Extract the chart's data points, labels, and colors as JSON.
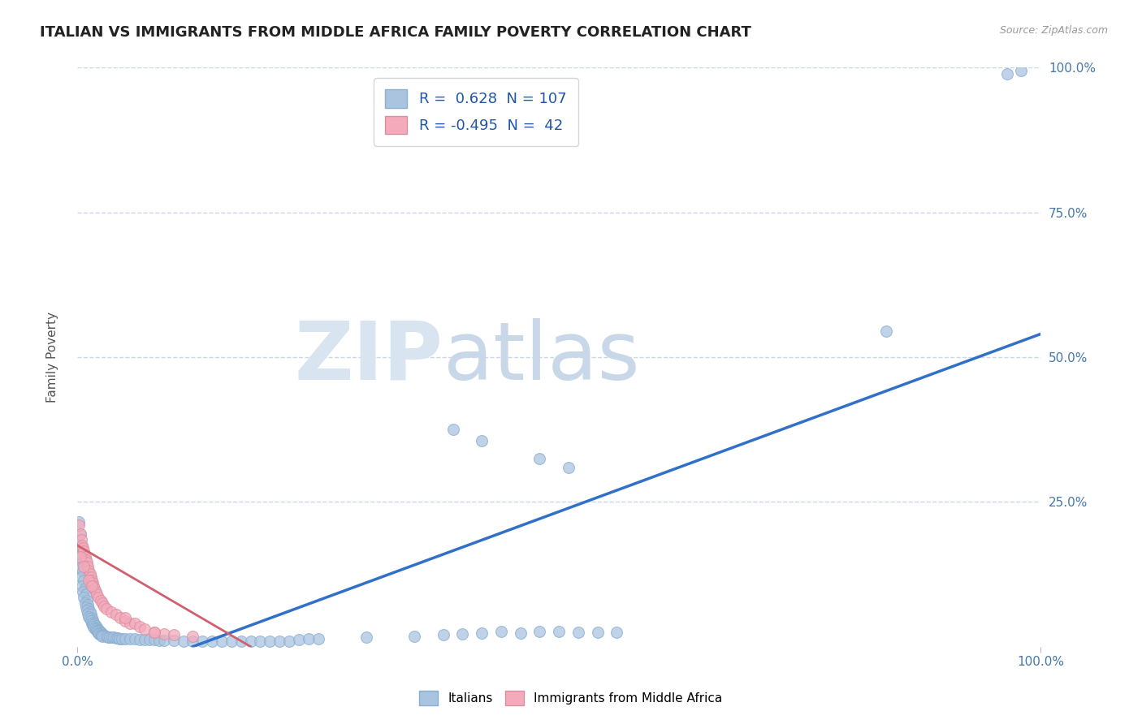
{
  "title": "ITALIAN VS IMMIGRANTS FROM MIDDLE AFRICA FAMILY POVERTY CORRELATION CHART",
  "source": "Source: ZipAtlas.com",
  "ylabel": "Family Poverty",
  "x_tick_labels": [
    "0.0%",
    "100.0%"
  ],
  "y_tick_labels": [
    "25.0%",
    "50.0%",
    "75.0%",
    "100.0%"
  ],
  "legend_labels": [
    "Italians",
    "Immigrants from Middle Africa"
  ],
  "blue_color": "#aac4e0",
  "pink_color": "#f4aabb",
  "blue_line_color": "#3070c8",
  "pink_line_color": "#d06070",
  "watermark_zip": "ZIP",
  "watermark_atlas": "atlas",
  "blue_scatter": [
    [
      0.002,
      0.215
    ],
    [
      0.003,
      0.195
    ],
    [
      0.001,
      0.175
    ],
    [
      0.004,
      0.16
    ],
    [
      0.002,
      0.155
    ],
    [
      0.005,
      0.145
    ],
    [
      0.003,
      0.135
    ],
    [
      0.006,
      0.13
    ],
    [
      0.004,
      0.12
    ],
    [
      0.007,
      0.115
    ],
    [
      0.005,
      0.105
    ],
    [
      0.008,
      0.1
    ],
    [
      0.006,
      0.095
    ],
    [
      0.009,
      0.09
    ],
    [
      0.007,
      0.085
    ],
    [
      0.01,
      0.08
    ],
    [
      0.008,
      0.075
    ],
    [
      0.011,
      0.072
    ],
    [
      0.009,
      0.068
    ],
    [
      0.012,
      0.065
    ],
    [
      0.01,
      0.062
    ],
    [
      0.013,
      0.06
    ],
    [
      0.011,
      0.057
    ],
    [
      0.014,
      0.055
    ],
    [
      0.012,
      0.052
    ],
    [
      0.015,
      0.05
    ],
    [
      0.013,
      0.048
    ],
    [
      0.016,
      0.046
    ],
    [
      0.014,
      0.044
    ],
    [
      0.017,
      0.042
    ],
    [
      0.015,
      0.04
    ],
    [
      0.018,
      0.039
    ],
    [
      0.016,
      0.037
    ],
    [
      0.019,
      0.036
    ],
    [
      0.017,
      0.034
    ],
    [
      0.02,
      0.033
    ],
    [
      0.018,
      0.032
    ],
    [
      0.021,
      0.031
    ],
    [
      0.019,
      0.03
    ],
    [
      0.022,
      0.029
    ],
    [
      0.02,
      0.028
    ],
    [
      0.023,
      0.027
    ],
    [
      0.021,
      0.026
    ],
    [
      0.024,
      0.025
    ],
    [
      0.022,
      0.024
    ],
    [
      0.025,
      0.023
    ],
    [
      0.023,
      0.022
    ],
    [
      0.026,
      0.021
    ],
    [
      0.024,
      0.02
    ],
    [
      0.027,
      0.02
    ],
    [
      0.025,
      0.019
    ],
    [
      0.028,
      0.019
    ],
    [
      0.026,
      0.018
    ],
    [
      0.03,
      0.018
    ],
    [
      0.032,
      0.017
    ],
    [
      0.034,
      0.017
    ],
    [
      0.036,
      0.016
    ],
    [
      0.038,
      0.016
    ],
    [
      0.04,
      0.015
    ],
    [
      0.042,
      0.015
    ],
    [
      0.044,
      0.014
    ],
    [
      0.046,
      0.014
    ],
    [
      0.05,
      0.013
    ],
    [
      0.055,
      0.013
    ],
    [
      0.06,
      0.013
    ],
    [
      0.065,
      0.012
    ],
    [
      0.07,
      0.012
    ],
    [
      0.075,
      0.012
    ],
    [
      0.08,
      0.012
    ],
    [
      0.085,
      0.011
    ],
    [
      0.09,
      0.011
    ],
    [
      0.1,
      0.011
    ],
    [
      0.11,
      0.01
    ],
    [
      0.12,
      0.01
    ],
    [
      0.13,
      0.01
    ],
    [
      0.14,
      0.01
    ],
    [
      0.15,
      0.01
    ],
    [
      0.16,
      0.01
    ],
    [
      0.17,
      0.01
    ],
    [
      0.18,
      0.01
    ],
    [
      0.19,
      0.01
    ],
    [
      0.2,
      0.01
    ],
    [
      0.21,
      0.01
    ],
    [
      0.22,
      0.01
    ],
    [
      0.23,
      0.012
    ],
    [
      0.24,
      0.013
    ],
    [
      0.25,
      0.014
    ],
    [
      0.3,
      0.016
    ],
    [
      0.35,
      0.018
    ],
    [
      0.38,
      0.02
    ],
    [
      0.4,
      0.022
    ],
    [
      0.42,
      0.024
    ],
    [
      0.44,
      0.026
    ],
    [
      0.46,
      0.024
    ],
    [
      0.48,
      0.026
    ],
    [
      0.5,
      0.026
    ],
    [
      0.52,
      0.025
    ],
    [
      0.54,
      0.025
    ],
    [
      0.56,
      0.025
    ],
    [
      0.39,
      0.375
    ],
    [
      0.42,
      0.355
    ],
    [
      0.48,
      0.325
    ],
    [
      0.51,
      0.31
    ],
    [
      0.84,
      0.545
    ],
    [
      0.965,
      0.99
    ],
    [
      0.98,
      0.995
    ]
  ],
  "pink_scatter": [
    [
      0.002,
      0.21
    ],
    [
      0.003,
      0.195
    ],
    [
      0.004,
      0.185
    ],
    [
      0.005,
      0.175
    ],
    [
      0.006,
      0.17
    ],
    [
      0.007,
      0.165
    ],
    [
      0.008,
      0.155
    ],
    [
      0.009,
      0.15
    ],
    [
      0.01,
      0.145
    ],
    [
      0.011,
      0.138
    ],
    [
      0.012,
      0.132
    ],
    [
      0.013,
      0.126
    ],
    [
      0.014,
      0.12
    ],
    [
      0.015,
      0.115
    ],
    [
      0.016,
      0.11
    ],
    [
      0.017,
      0.105
    ],
    [
      0.018,
      0.1
    ],
    [
      0.019,
      0.095
    ],
    [
      0.02,
      0.09
    ],
    [
      0.022,
      0.085
    ],
    [
      0.024,
      0.08
    ],
    [
      0.026,
      0.075
    ],
    [
      0.028,
      0.07
    ],
    [
      0.03,
      0.065
    ],
    [
      0.035,
      0.06
    ],
    [
      0.04,
      0.055
    ],
    [
      0.045,
      0.05
    ],
    [
      0.05,
      0.045
    ],
    [
      0.055,
      0.04
    ],
    [
      0.06,
      0.04
    ],
    [
      0.065,
      0.035
    ],
    [
      0.07,
      0.03
    ],
    [
      0.08,
      0.025
    ],
    [
      0.09,
      0.022
    ],
    [
      0.1,
      0.02
    ],
    [
      0.12,
      0.018
    ],
    [
      0.003,
      0.155
    ],
    [
      0.007,
      0.138
    ],
    [
      0.012,
      0.115
    ],
    [
      0.05,
      0.05
    ],
    [
      0.08,
      0.025
    ],
    [
      0.015,
      0.105
    ]
  ],
  "blue_line": [
    [
      0.12,
      0.0
    ],
    [
      1.0,
      0.54
    ]
  ],
  "pink_line": [
    [
      0.0,
      0.175
    ],
    [
      0.18,
      0.0
    ]
  ],
  "ylim": [
    0,
    1.0
  ],
  "xlim": [
    0,
    1.0
  ],
  "grid_color": "#c8d8e8",
  "bg_color": "#ffffff",
  "title_fontsize": 13,
  "axis_label_fontsize": 11,
  "tick_fontsize": 11
}
